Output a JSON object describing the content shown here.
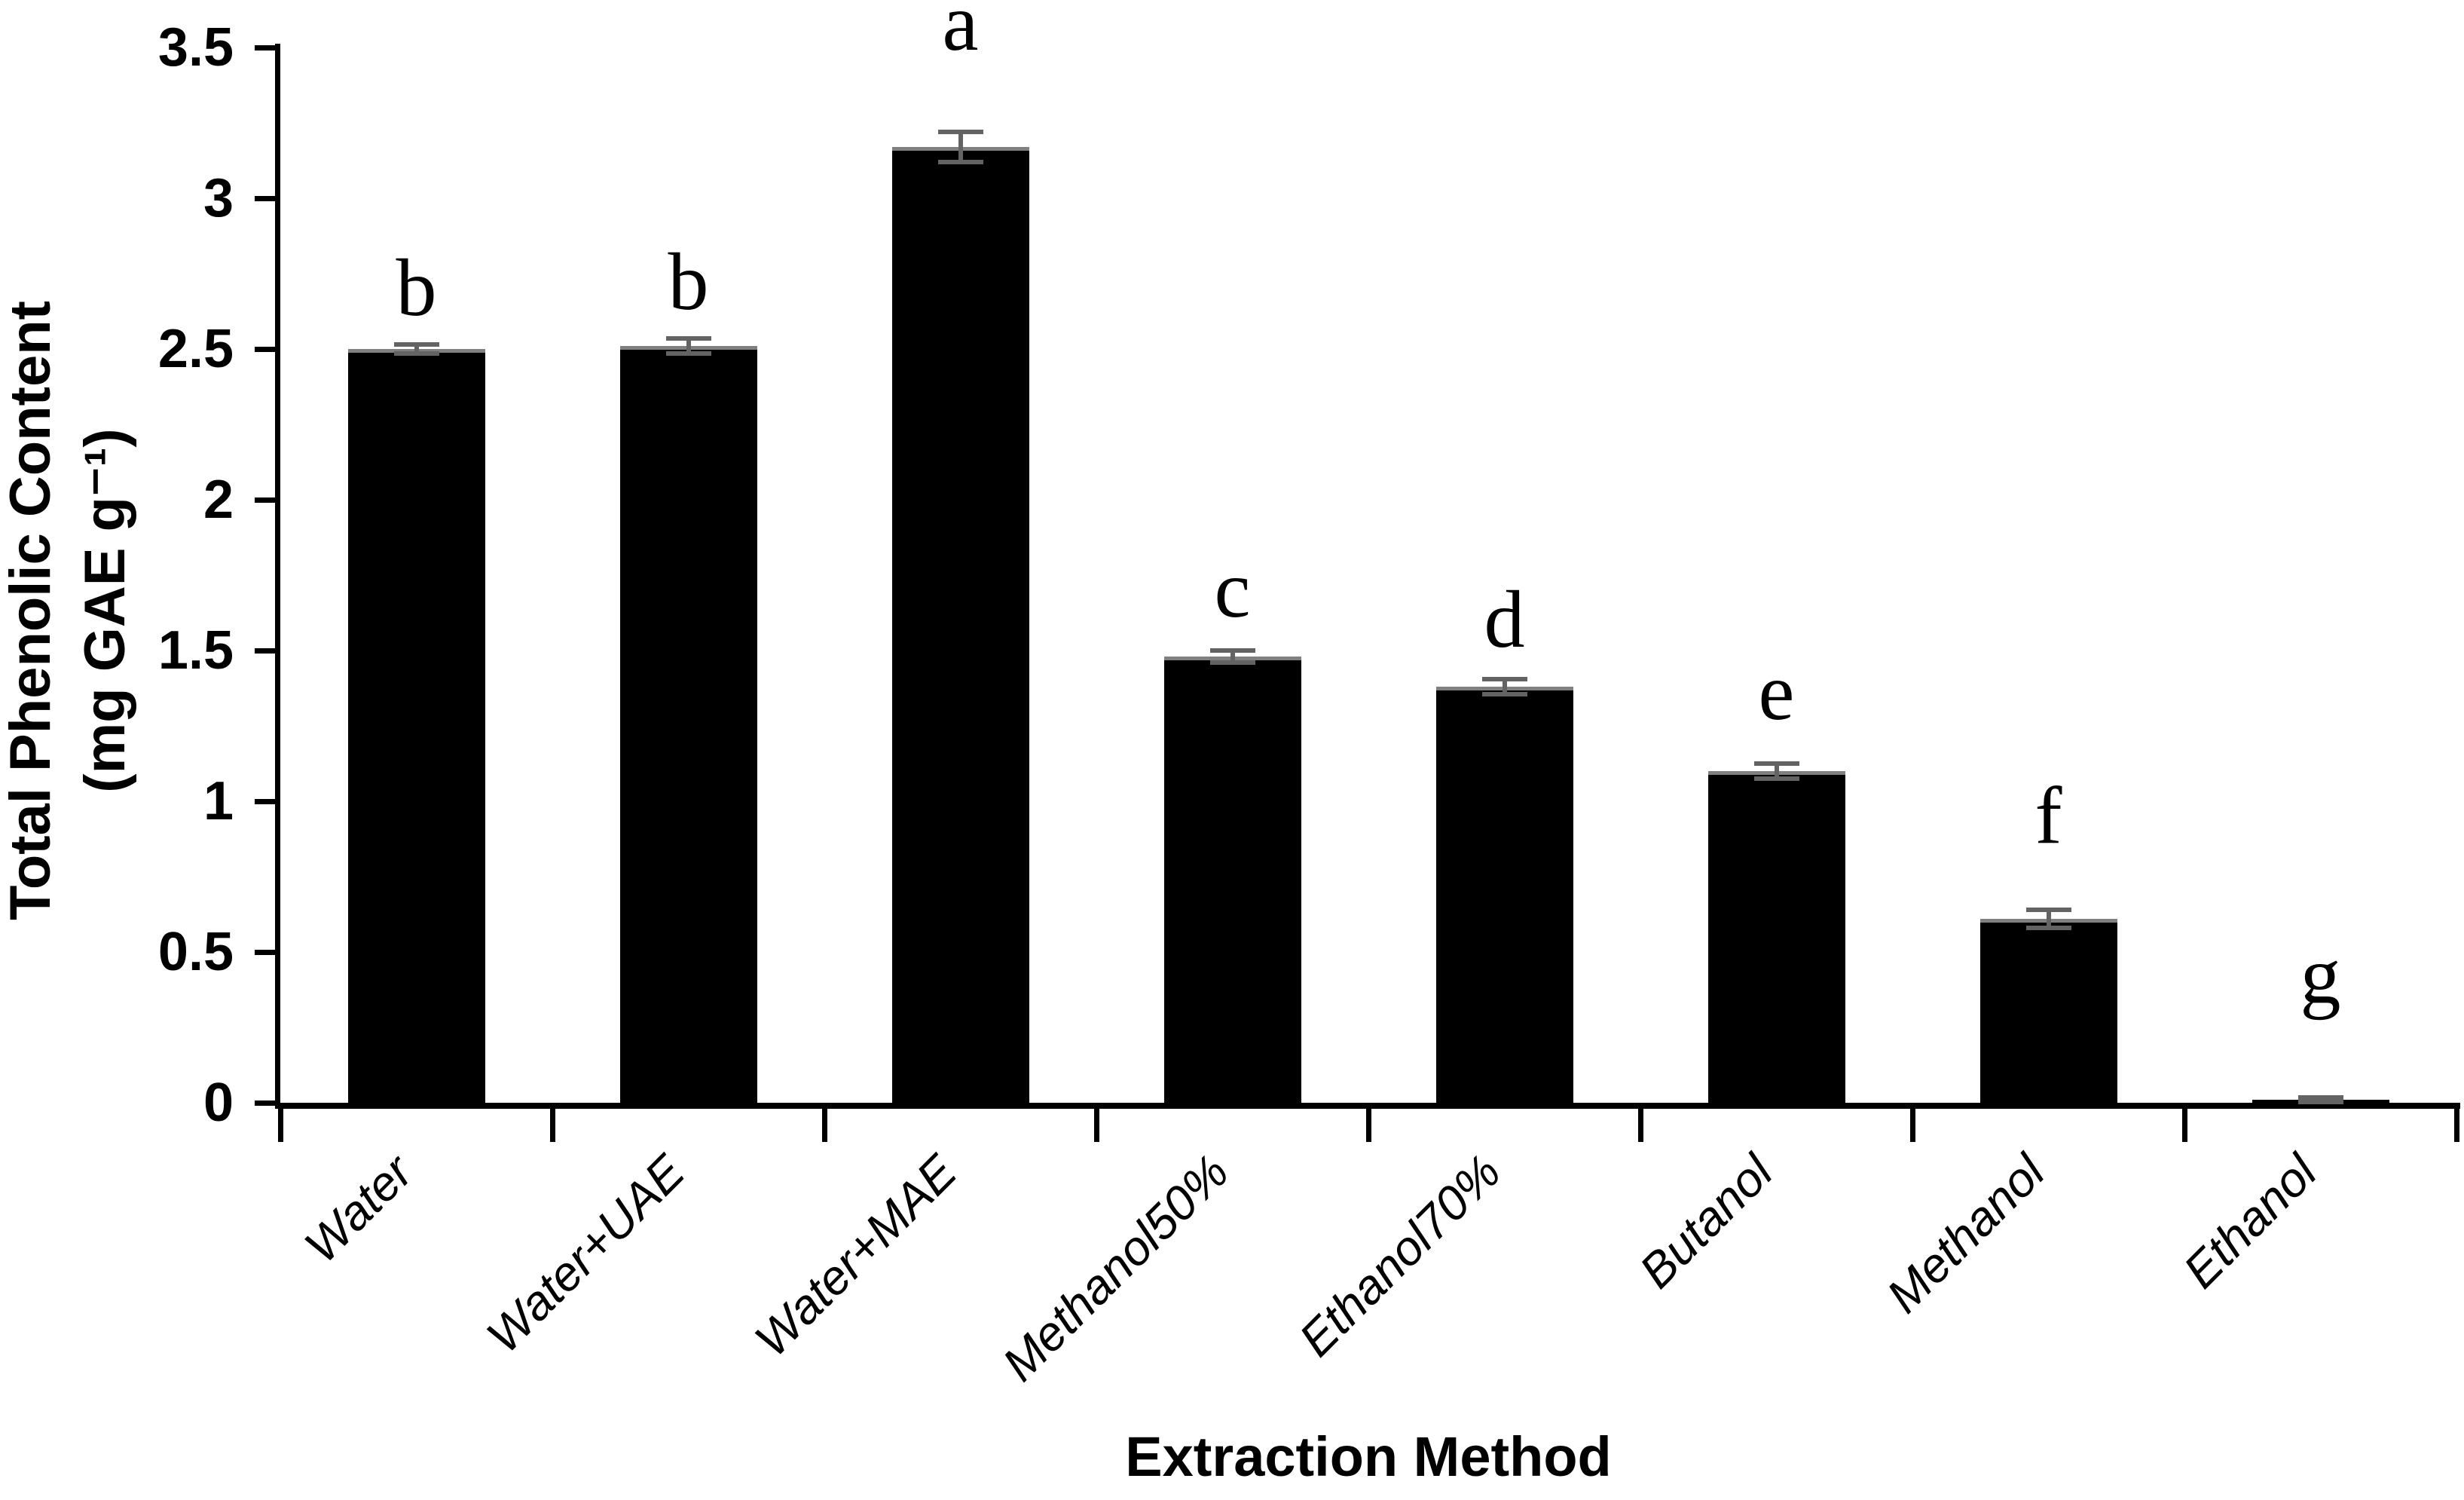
{
  "chart_data": {
    "type": "bar",
    "title": "",
    "xlabel": "Extraction Method",
    "ylabel": "Total Phenolic Content (mg GAE g⁻¹)",
    "ylabel_line1": "Total Phenolic Content",
    "ylabel_line2": "(mg GAE g⁻¹)",
    "categories": [
      "Water",
      "Water+UAE",
      "Water+MAE",
      "Methanol50%",
      "Ethanol70%",
      "Butanol",
      "Methanol",
      "Ethanol"
    ],
    "values": [
      2.5,
      2.51,
      3.17,
      1.48,
      1.38,
      1.1,
      0.61,
      0.01
    ],
    "error_bars": [
      0.015,
      0.025,
      0.05,
      0.02,
      0.025,
      0.025,
      0.03,
      0.008
    ],
    "significance_letters": [
      "b",
      "b",
      "a",
      "c",
      "d",
      "e",
      "f",
      "g"
    ],
    "letter_y_positions": [
      2.62,
      2.64,
      3.5,
      1.62,
      1.52,
      1.28,
      0.87,
      0.34
    ],
    "y_tick_labels": [
      "0",
      "0.5",
      "1",
      "1.5",
      "2",
      "2.5",
      "3",
      "3.5"
    ],
    "ylim": [
      0,
      3.5
    ],
    "grid": false,
    "legend": false,
    "bar_color": "#000000",
    "error_bar_color": "#636363",
    "axis_color": "#000000",
    "background_color": "#ffffff"
  }
}
